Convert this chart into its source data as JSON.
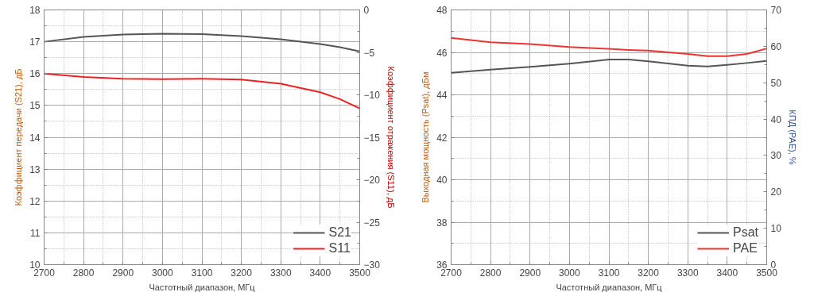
{
  "chart_data": [
    {
      "type": "line",
      "xlabel": "Частотный диапазон, МГц",
      "ylabel": "Коэффициент передачи (S21), дБ",
      "y2label": "Коэффициент отражения (S11), дБ",
      "x": [
        2700,
        2800,
        2900,
        3000,
        3100,
        3200,
        3300,
        3400,
        3450,
        3500
      ],
      "series": [
        {
          "name": "S21",
          "color": "#555555",
          "values": [
            17.0,
            17.15,
            17.23,
            17.25,
            17.24,
            17.18,
            17.08,
            16.93,
            16.83,
            16.7
          ]
        },
        {
          "name": "S11",
          "color": "#ee2222",
          "axis": "y2",
          "values": [
            -7.5,
            -7.9,
            -8.1,
            -8.15,
            -8.1,
            -8.2,
            -8.7,
            -9.7,
            -10.5,
            -11.6
          ]
        }
      ],
      "xlim": [
        2700,
        3500
      ],
      "xticks": [
        2700,
        2800,
        2900,
        3000,
        3100,
        3200,
        3300,
        3400,
        3500
      ],
      "ylim": [
        10,
        18
      ],
      "yticks": [
        10,
        11,
        12,
        13,
        14,
        15,
        16,
        17,
        18
      ],
      "y2lim": [
        -30,
        0
      ],
      "y2ticks": [
        -30,
        -25,
        -20,
        -15,
        -10,
        -5,
        0
      ],
      "grid": true,
      "legend": "bottom right",
      "line_style": "solid",
      "marker": "none"
    },
    {
      "type": "line",
      "xlabel": "Частотный диапазон, МГц",
      "ylabel": "Выходная мощность (Psat), дБм",
      "y2label": "КПД (PAE), %",
      "x": [
        2700,
        2800,
        2900,
        3000,
        3100,
        3150,
        3200,
        3300,
        3350,
        3400,
        3450,
        3500
      ],
      "series": [
        {
          "name": "Psat",
          "color": "#555555",
          "values": [
            45.04,
            45.19,
            45.32,
            45.47,
            45.66,
            45.66,
            45.58,
            45.37,
            45.34,
            45.41,
            45.5,
            45.6
          ]
        },
        {
          "name": "PAE",
          "color": "#ee3333",
          "axis": "y2",
          "values": [
            62.3,
            61.1,
            60.6,
            59.8,
            59.3,
            59.0,
            58.8,
            57.9,
            57.3,
            57.3,
            57.9,
            59.4
          ]
        }
      ],
      "xlim": [
        2700,
        3500
      ],
      "xticks": [
        2700,
        2800,
        2900,
        3000,
        3100,
        3200,
        3300,
        3400,
        3500
      ],
      "ylim": [
        36,
        48
      ],
      "yticks": [
        36,
        38,
        40,
        42,
        44,
        46,
        48
      ],
      "y2lim": [
        0,
        70
      ],
      "y2ticks": [
        0,
        10,
        20,
        30,
        40,
        50,
        60,
        70
      ],
      "grid": true,
      "legend": "bottom right",
      "line_style": "solid",
      "marker": "none"
    }
  ]
}
